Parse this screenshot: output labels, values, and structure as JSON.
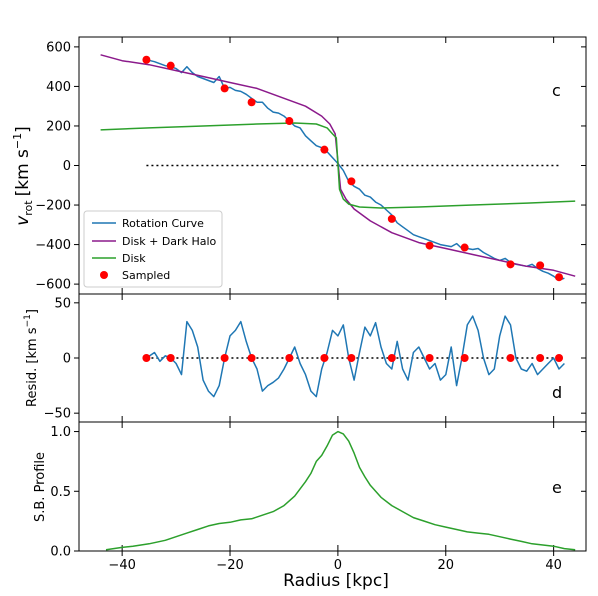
{
  "chart_data": [
    {
      "panel": "c",
      "type": "line",
      "ylabel_main": "v",
      "ylabel_sub": "rot",
      "ylabel_unit": "[km s",
      "ylabel_exp": "−1",
      "ylabel_close": "]",
      "xlim": [
        -48,
        46
      ],
      "ylim": [
        -650,
        650
      ],
      "yticks": [
        600,
        400,
        200,
        0,
        -200,
        -400,
        -600
      ],
      "grid": false,
      "legend_placement": "lower-left",
      "series": [
        {
          "name": "Rotation Curve",
          "color": "#1f77b4",
          "x": [
            -35.5,
            -34,
            -33,
            -32,
            -31,
            -30,
            -29,
            -28,
            -27,
            -26,
            -25,
            -24,
            -23,
            -22,
            -21,
            -20,
            -19,
            -18,
            -17,
            -16,
            -15,
            -14,
            -13,
            -12,
            -11,
            -10,
            -9,
            -8,
            -7,
            -6,
            -5,
            -4,
            -3,
            -2,
            -1,
            0,
            1,
            2,
            3,
            4,
            5,
            6,
            7,
            8,
            9,
            10,
            11,
            12,
            13,
            14,
            15,
            16,
            17,
            18,
            19,
            20,
            21,
            22,
            23,
            24,
            25,
            26,
            27,
            28,
            29,
            30,
            31,
            32,
            33,
            34,
            35,
            36,
            37,
            38,
            39,
            40,
            41,
            42
          ],
          "y": [
            535,
            525,
            515,
            505,
            500,
            490,
            470,
            500,
            470,
            450,
            440,
            430,
            420,
            450,
            390,
            395,
            380,
            375,
            360,
            340,
            320,
            320,
            290,
            270,
            265,
            250,
            225,
            200,
            190,
            150,
            125,
            100,
            90,
            70,
            40,
            10,
            -25,
            -80,
            -105,
            -120,
            -150,
            -160,
            -185,
            -200,
            -225,
            -250,
            -290,
            -310,
            -330,
            -350,
            -360,
            -370,
            -380,
            -390,
            -400,
            -405,
            -410,
            -395,
            -420,
            -420,
            -425,
            -420,
            -440,
            -455,
            -470,
            -480,
            -470,
            -490,
            -500,
            -505,
            -510,
            -500,
            -520,
            -535,
            -545,
            -560,
            -580,
            -570
          ]
        },
        {
          "name": "Disk + Dark Halo",
          "color": "#8b1a8b",
          "x": [
            -44,
            -40,
            -35,
            -30,
            -25,
            -20,
            -15,
            -10,
            -6,
            -3,
            -1.5,
            -0.5,
            0.5,
            1.5,
            3,
            6,
            10,
            15,
            20,
            25,
            30,
            35,
            40,
            44
          ],
          "y": [
            560,
            530,
            510,
            480,
            450,
            420,
            390,
            340,
            300,
            250,
            210,
            160,
            -120,
            -170,
            -220,
            -280,
            -340,
            -390,
            -420,
            -450,
            -480,
            -510,
            -530,
            -560
          ]
        },
        {
          "name": "Disk",
          "color": "#2ca02c",
          "x": [
            -44,
            -35,
            -25,
            -15,
            -8,
            -4,
            -2,
            -1,
            -0.3,
            0.3,
            1,
            2,
            4,
            8,
            15,
            25,
            35,
            44
          ],
          "y": [
            180,
            190,
            200,
            210,
            215,
            210,
            190,
            160,
            140,
            -120,
            -170,
            -195,
            -210,
            -215,
            -210,
            -200,
            -190,
            -180
          ]
        }
      ],
      "sampled": {
        "name": "Sampled",
        "color": "#ff0000",
        "x": [
          -35.5,
          -31,
          -21,
          -16,
          -9,
          -2.5,
          2.5,
          10,
          17,
          23.5,
          32,
          37.5,
          41
        ],
        "y": [
          535,
          505,
          390,
          320,
          225,
          80,
          -80,
          -270,
          -405,
          -415,
          -500,
          -505,
          -565
        ]
      },
      "zero_line": {
        "x": [
          -35.5,
          41
        ],
        "y": 0
      }
    },
    {
      "panel": "d",
      "type": "line",
      "ylabel": "Resid. [km s",
      "ylabel_exp": "−1",
      "ylabel_close": "]",
      "xlim": [
        -48,
        46
      ],
      "ylim": [
        -58,
        58
      ],
      "yticks": [
        50,
        0,
        -50
      ],
      "series": [
        {
          "name": "Residual",
          "color": "#1f77b4",
          "x": [
            -35.5,
            -34,
            -33,
            -32,
            -31,
            -30,
            -29,
            -28,
            -27,
            -26,
            -25,
            -24,
            -23,
            -22,
            -21,
            -20,
            -19,
            -18,
            -17,
            -16,
            -15,
            -14,
            -13,
            -12,
            -11,
            -10,
            -9,
            -8,
            -7,
            -6,
            -5,
            -4,
            -3,
            -2,
            -1,
            0,
            1,
            2,
            3,
            4,
            5,
            6,
            7,
            8,
            9,
            10,
            11,
            12,
            13,
            14,
            15,
            16,
            17,
            18,
            19,
            20,
            21,
            22,
            23,
            24,
            25,
            26,
            27,
            28,
            29,
            30,
            31,
            32,
            33,
            34,
            35,
            36,
            37,
            38,
            39,
            40,
            41,
            42
          ],
          "y": [
            0,
            5,
            -3,
            2,
            0,
            -5,
            -15,
            33,
            25,
            10,
            -20,
            -30,
            -35,
            -25,
            0,
            20,
            25,
            33,
            15,
            0,
            -10,
            -30,
            -25,
            -22,
            -18,
            -10,
            0,
            10,
            -5,
            -15,
            -30,
            -35,
            -10,
            5,
            25,
            20,
            30,
            0,
            -20,
            5,
            28,
            20,
            32,
            10,
            -5,
            -10,
            15,
            -10,
            -20,
            5,
            10,
            0,
            -10,
            -5,
            -20,
            -15,
            10,
            -25,
            0,
            30,
            38,
            25,
            0,
            -15,
            -10,
            20,
            38,
            30,
            0,
            -10,
            -12,
            -5,
            -15,
            -10,
            -5,
            0,
            -10,
            -5
          ]
        }
      ],
      "sampled": {
        "name": "Sampled",
        "color": "#ff0000",
        "x": [
          -35.5,
          -31,
          -21,
          -16,
          -9,
          -2.5,
          2.5,
          10,
          17,
          23.5,
          32,
          37.5,
          41
        ],
        "y": [
          0,
          0,
          0,
          0,
          0,
          0,
          0,
          0,
          0,
          0,
          0,
          0,
          0
        ]
      },
      "zero_line": {
        "x": [
          -35.5,
          41
        ],
        "y": 0
      }
    },
    {
      "panel": "e",
      "type": "line",
      "ylabel": "S.B. Profile",
      "xlabel": "Radius [kpc]",
      "xlim": [
        -48,
        46
      ],
      "ylim": [
        0,
        1.08
      ],
      "yticks": [
        1.0,
        0.5,
        0.0
      ],
      "xticks": [
        -40,
        -20,
        0,
        20,
        40
      ],
      "series": [
        {
          "name": "S.B. Profile",
          "color": "#2ca02c",
          "x": [
            -43,
            -40,
            -38,
            -35,
            -32,
            -30,
            -28,
            -26,
            -24,
            -22,
            -20,
            -18,
            -16,
            -14,
            -12,
            -10,
            -8,
            -6,
            -5,
            -4,
            -3,
            -2,
            -1,
            0,
            1,
            2,
            3,
            4,
            5,
            6,
            8,
            10,
            12,
            14,
            16,
            18,
            20,
            22,
            24,
            26,
            28,
            30,
            32,
            34,
            36,
            38,
            40,
            42,
            44
          ],
          "y": [
            0.01,
            0.03,
            0.04,
            0.06,
            0.09,
            0.12,
            0.15,
            0.18,
            0.21,
            0.23,
            0.24,
            0.26,
            0.27,
            0.3,
            0.33,
            0.38,
            0.46,
            0.58,
            0.65,
            0.75,
            0.8,
            0.88,
            0.97,
            1.0,
            0.98,
            0.92,
            0.82,
            0.7,
            0.62,
            0.55,
            0.45,
            0.38,
            0.33,
            0.28,
            0.25,
            0.22,
            0.2,
            0.18,
            0.16,
            0.15,
            0.14,
            0.12,
            0.1,
            0.08,
            0.06,
            0.05,
            0.04,
            0.02,
            0.01
          ]
        }
      ]
    }
  ],
  "legend": {
    "items": [
      {
        "label": "Rotation Curve",
        "color": "#1f77b4",
        "kind": "line"
      },
      {
        "label": "Disk + Dark Halo",
        "color": "#8b1a8b",
        "kind": "line"
      },
      {
        "label": "Disk",
        "color": "#2ca02c",
        "kind": "line"
      },
      {
        "label": "Sampled",
        "color": "#ff0000",
        "kind": "dot"
      }
    ]
  },
  "panel_letters": {
    "c": "c",
    "d": "d",
    "e": "e"
  },
  "xtick_labels": [
    "−40",
    "−20",
    "0",
    "20",
    "40"
  ],
  "ytick_labels_c": [
    "600",
    "400",
    "200",
    "0",
    "−200",
    "−400",
    "−600"
  ],
  "ytick_labels_d": [
    "50",
    "0",
    "−50"
  ],
  "ytick_labels_e": [
    "1.0",
    "0.5",
    "0.0"
  ]
}
